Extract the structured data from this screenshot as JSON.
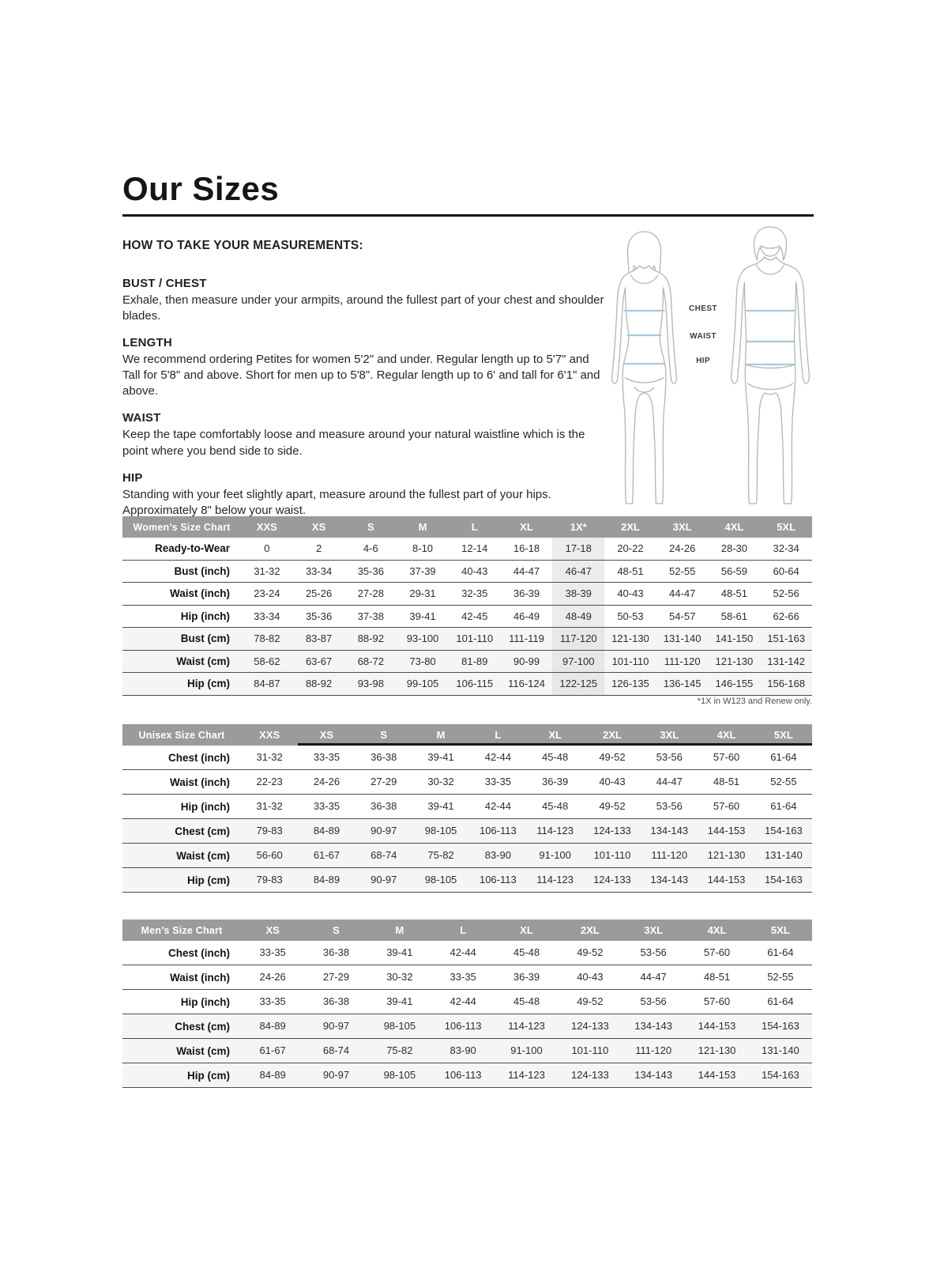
{
  "page": {
    "title": "Our Sizes",
    "how_to_heading": "HOW TO TAKE YOUR MEASUREMENTS:",
    "sections": [
      {
        "heading": "BUST / CHEST",
        "body": "Exhale, then measure under your armpits, around the fullest part of your chest and shoulder blades."
      },
      {
        "heading": "LENGTH",
        "body": "We recommend ordering Petites for women 5'2\" and under. Regular length up to 5'7\" and Tall for 5'8\" and above. Short for men up to 5'8\". Regular length up to 6' and tall for 6'1\" and above."
      },
      {
        "heading": "WAIST",
        "body": "Keep the tape comfortably loose and measure around your natural waistline which is the point where you bend side to side."
      },
      {
        "heading": "HIP",
        "body": "Standing with your feet slightly apart, measure around the fullest part of your hips. Approximately 8\" below your waist."
      }
    ],
    "figure_labels": [
      "CHEST",
      "WAIST",
      "HIP"
    ]
  },
  "colors": {
    "header_gray": "#9b9b9b",
    "shaded_row": "#f5f5f5",
    "highlight_column": "#ececec",
    "measure_line_blue": "#a9c9dd"
  },
  "tables": {
    "women": {
      "title": "Women’s Size Chart",
      "columns": [
        "XXS",
        "XS",
        "S",
        "M",
        "L",
        "XL",
        "1X*",
        "2XL",
        "3XL",
        "4XL",
        "5XL"
      ],
      "highlight_col": 6,
      "rows": [
        {
          "label": "Ready-to-Wear",
          "values": [
            "0",
            "2",
            "4-6",
            "8-10",
            "12-14",
            "16-18",
            "17-18",
            "20-22",
            "24-26",
            "28-30",
            "32-34"
          ]
        },
        {
          "label": "Bust (inch)",
          "values": [
            "31-32",
            "33-34",
            "35-36",
            "37-39",
            "40-43",
            "44-47",
            "46-47",
            "48-51",
            "52-55",
            "56-59",
            "60-64"
          ]
        },
        {
          "label": "Waist (inch)",
          "values": [
            "23-24",
            "25-26",
            "27-28",
            "29-31",
            "32-35",
            "36-39",
            "38-39",
            "40-43",
            "44-47",
            "48-51",
            "52-56"
          ]
        },
        {
          "label": "Hip (inch)",
          "values": [
            "33-34",
            "35-36",
            "37-38",
            "39-41",
            "42-45",
            "46-49",
            "48-49",
            "50-53",
            "54-57",
            "58-61",
            "62-66"
          ]
        },
        {
          "label": "Bust (cm)",
          "shaded": true,
          "values": [
            "78-82",
            "83-87",
            "88-92",
            "93-100",
            "101-110",
            "111-119",
            "117-120",
            "121-130",
            "131-140",
            "141-150",
            "151-163"
          ]
        },
        {
          "label": "Waist (cm)",
          "shaded": true,
          "values": [
            "58-62",
            "63-67",
            "68-72",
            "73-80",
            "81-89",
            "90-99",
            "97-100",
            "101-110",
            "111-120",
            "121-130",
            "131-142"
          ]
        },
        {
          "label": "Hip (cm)",
          "shaded": true,
          "values": [
            "84-87",
            "88-92",
            "93-98",
            "99-105",
            "106-115",
            "116-124",
            "122-125",
            "126-135",
            "136-145",
            "146-155",
            "156-168"
          ]
        }
      ],
      "footnote": "*1X in W123 and Renew only."
    },
    "unisex": {
      "title": "Unisex Size Chart",
      "columns": [
        "XXS",
        "XS",
        "S",
        "M",
        "L",
        "XL",
        "2XL",
        "3XL",
        "4XL",
        "5XL"
      ],
      "header_underline_from": 1,
      "rows": [
        {
          "label": "Chest (inch)",
          "values": [
            "31-32",
            "33-35",
            "36-38",
            "39-41",
            "42-44",
            "45-48",
            "49-52",
            "53-56",
            "57-60",
            "61-64"
          ]
        },
        {
          "label": "Waist (inch)",
          "values": [
            "22-23",
            "24-26",
            "27-29",
            "30-32",
            "33-35",
            "36-39",
            "40-43",
            "44-47",
            "48-51",
            "52-55"
          ]
        },
        {
          "label": "Hip (inch)",
          "values": [
            "31-32",
            "33-35",
            "36-38",
            "39-41",
            "42-44",
            "45-48",
            "49-52",
            "53-56",
            "57-60",
            "61-64"
          ]
        },
        {
          "label": "Chest (cm)",
          "shaded": true,
          "values": [
            "79-83",
            "84-89",
            "90-97",
            "98-105",
            "106-113",
            "114-123",
            "124-133",
            "134-143",
            "144-153",
            "154-163"
          ]
        },
        {
          "label": "Waist (cm)",
          "shaded": true,
          "values": [
            "56-60",
            "61-67",
            "68-74",
            "75-82",
            "83-90",
            "91-100",
            "101-110",
            "111-120",
            "121-130",
            "131-140"
          ]
        },
        {
          "label": "Hip (cm)",
          "shaded": true,
          "values": [
            "79-83",
            "84-89",
            "90-97",
            "98-105",
            "106-113",
            "114-123",
            "124-133",
            "134-143",
            "144-153",
            "154-163"
          ]
        }
      ]
    },
    "men": {
      "title": "Men’s Size Chart",
      "columns": [
        "XS",
        "S",
        "M",
        "L",
        "XL",
        "2XL",
        "3XL",
        "4XL",
        "5XL"
      ],
      "rows": [
        {
          "label": "Chest (inch)",
          "values": [
            "33-35",
            "36-38",
            "39-41",
            "42-44",
            "45-48",
            "49-52",
            "53-56",
            "57-60",
            "61-64"
          ]
        },
        {
          "label": "Waist (inch)",
          "values": [
            "24-26",
            "27-29",
            "30-32",
            "33-35",
            "36-39",
            "40-43",
            "44-47",
            "48-51",
            "52-55"
          ]
        },
        {
          "label": "Hip (inch)",
          "values": [
            "33-35",
            "36-38",
            "39-41",
            "42-44",
            "45-48",
            "49-52",
            "53-56",
            "57-60",
            "61-64"
          ]
        },
        {
          "label": "Chest (cm)",
          "shaded": true,
          "values": [
            "84-89",
            "90-97",
            "98-105",
            "106-113",
            "114-123",
            "124-133",
            "134-143",
            "144-153",
            "154-163"
          ]
        },
        {
          "label": "Waist (cm)",
          "shaded": true,
          "values": [
            "61-67",
            "68-74",
            "75-82",
            "83-90",
            "91-100",
            "101-110",
            "111-120",
            "121-130",
            "131-140"
          ]
        },
        {
          "label": "Hip (cm)",
          "shaded": true,
          "values": [
            "84-89",
            "90-97",
            "98-105",
            "106-113",
            "114-123",
            "124-133",
            "134-143",
            "144-153",
            "154-163"
          ]
        }
      ]
    }
  }
}
